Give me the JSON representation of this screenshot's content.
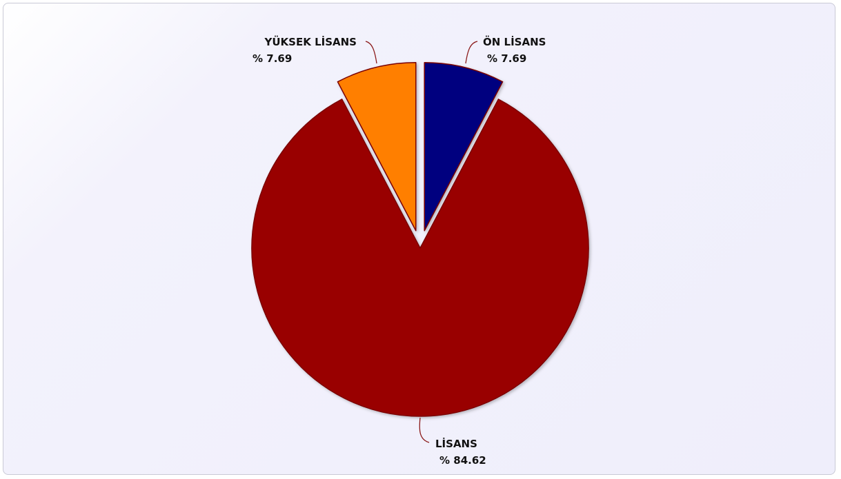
{
  "chart_data": {
    "type": "pie",
    "title": "",
    "slices": [
      {
        "name": "ÖN LİSANS",
        "percent_label": "% 7.69",
        "value": 7.69,
        "color": "#00007f"
      },
      {
        "name": "LİSANS",
        "percent_label": "% 84.62",
        "value": 84.62,
        "color": "#990000"
      },
      {
        "name": "YÜKSEK LİSANS",
        "percent_label": "% 7.69",
        "value": 7.69,
        "color": "#ff7f00"
      }
    ],
    "exploded": [
      "ÖN LİSANS",
      "YÜKSEK LİSANS"
    ],
    "legend": "none",
    "outline_color": "#7a0000",
    "leader_line_color": "#8b1a1a"
  }
}
